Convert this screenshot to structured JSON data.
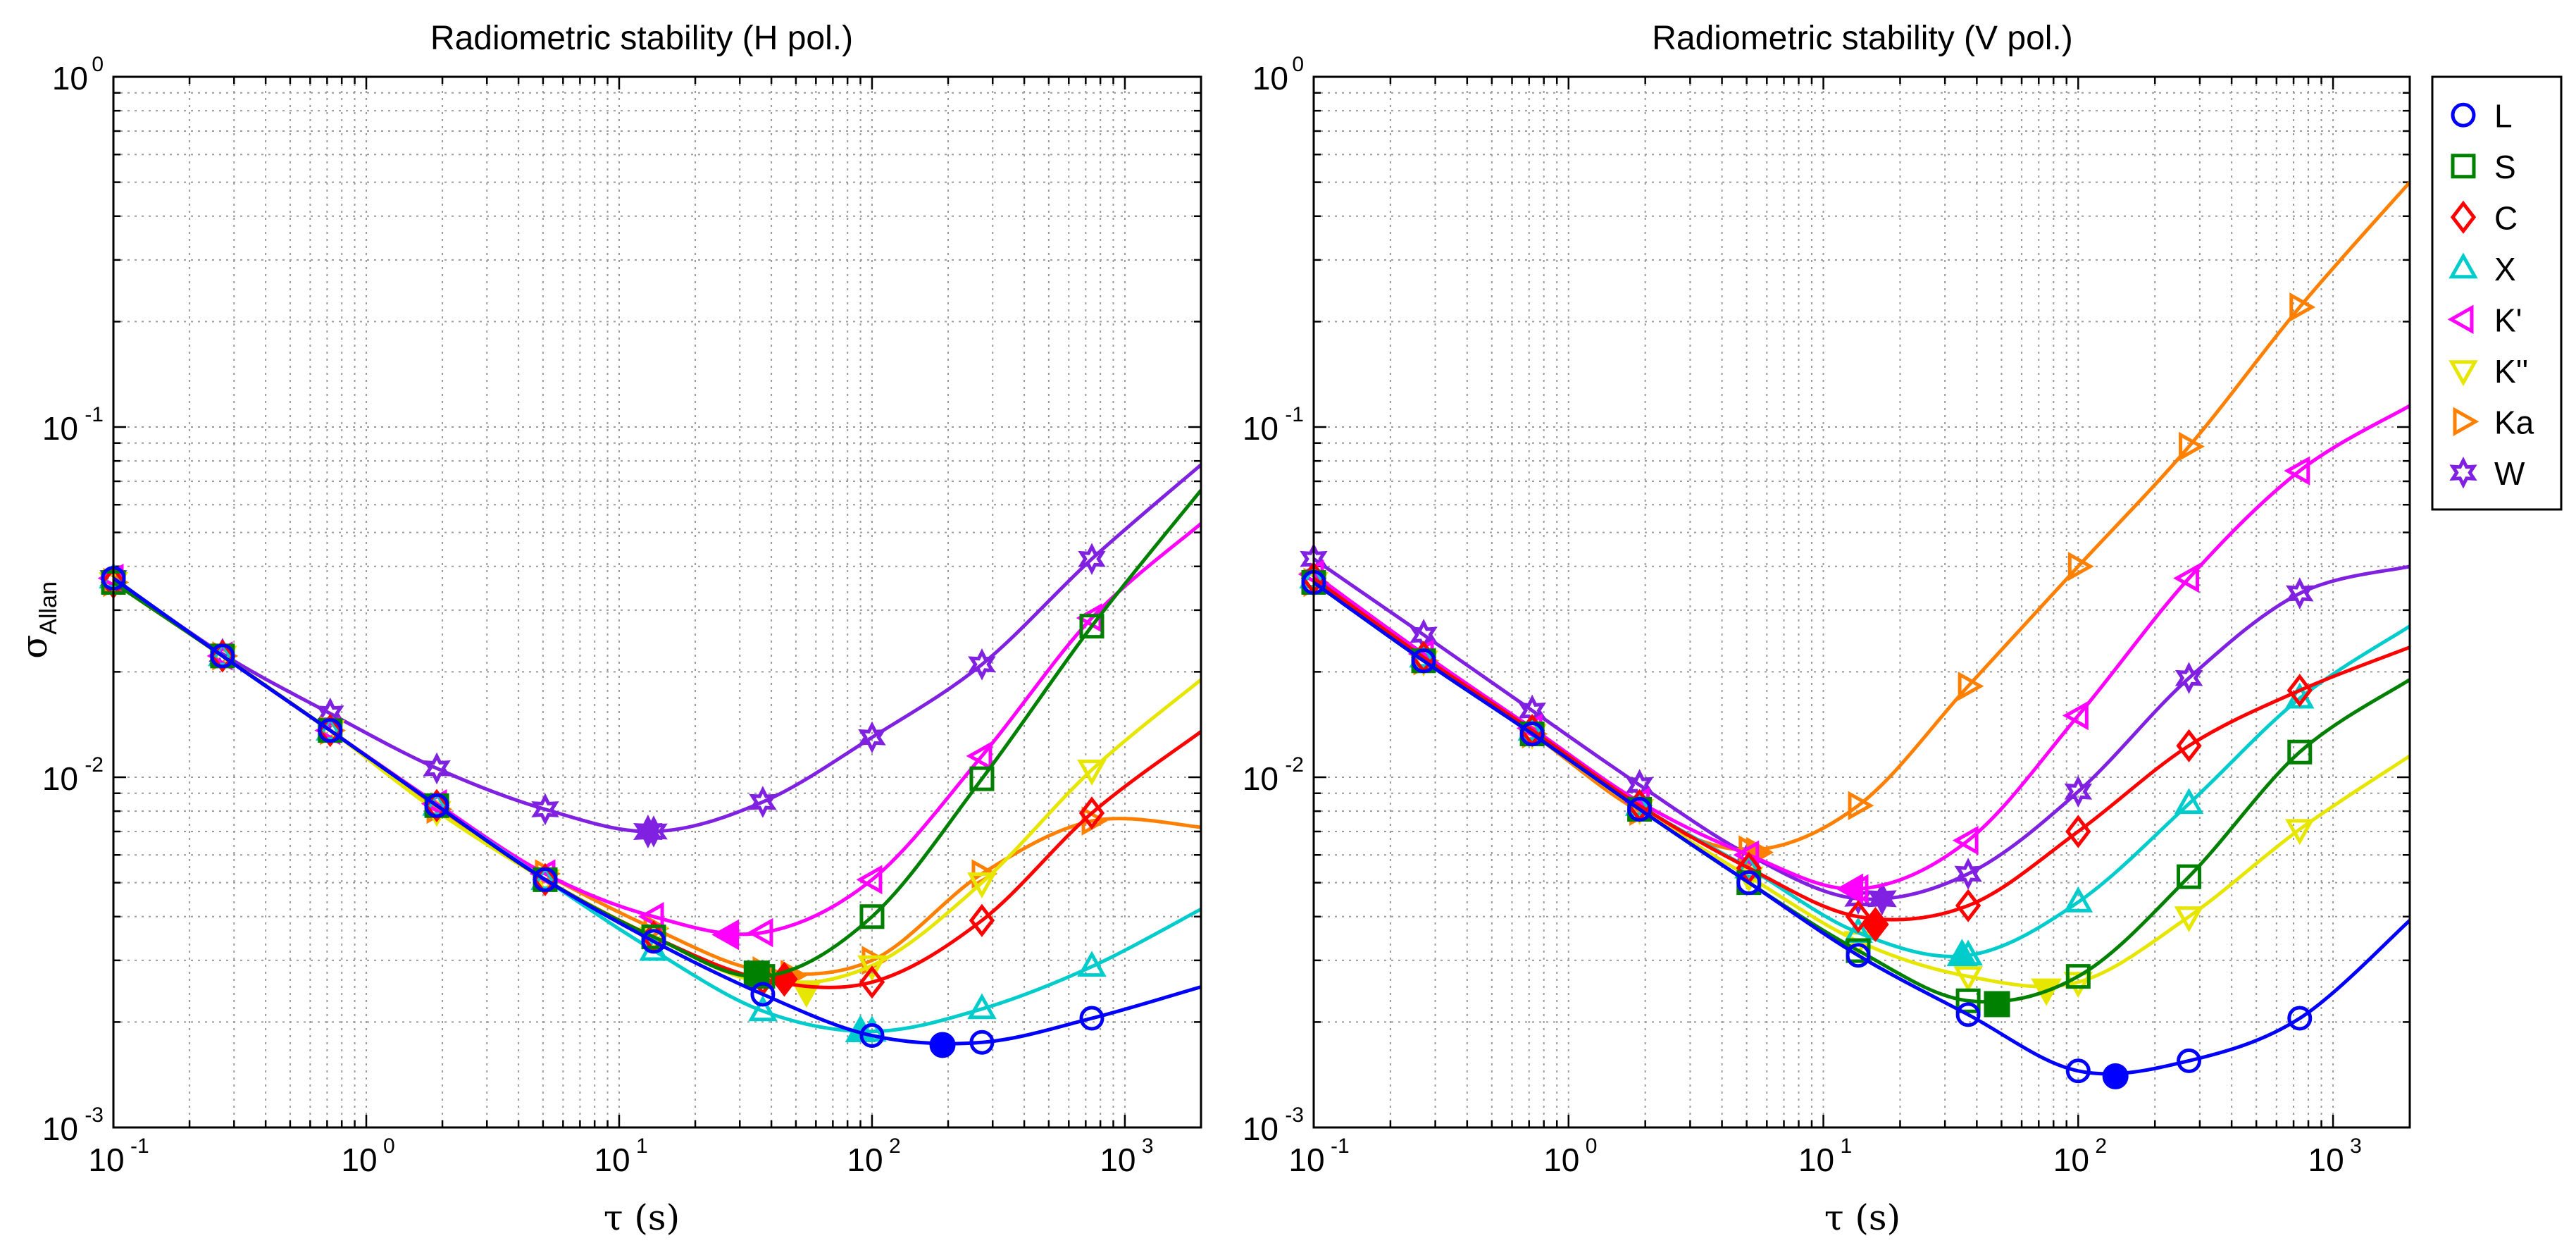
{
  "chart_data": [
    {
      "type": "line",
      "title": "Radiometric stability (H pol.)",
      "xlabel": "τ (s)",
      "ylabel_main": "σ",
      "ylabel_sub": "Allan",
      "xscale": "log",
      "yscale": "log",
      "xlim": [
        0.1,
        2000
      ],
      "ylim": [
        0.001,
        1
      ],
      "grid": true,
      "legend_position": "",
      "x_tick_labels": [
        {
          "base": "10",
          "exp": "-1",
          "value": 0.1
        },
        {
          "base": "10",
          "exp": "0",
          "value": 1
        },
        {
          "base": "10",
          "exp": "1",
          "value": 10
        },
        {
          "base": "10",
          "exp": "2",
          "value": 100
        },
        {
          "base": "10",
          "exp": "3",
          "value": 1000
        }
      ],
      "y_tick_labels": [
        {
          "base": "10",
          "exp": "-3",
          "value": 0.001
        },
        {
          "base": "10",
          "exp": "-2",
          "value": 0.01
        },
        {
          "base": "10",
          "exp": "-1",
          "value": 0.1
        },
        {
          "base": "10",
          "exp": "0",
          "value": 1
        }
      ],
      "series": [
        {
          "name": "L",
          "color": "#0000ff",
          "marker": "circle",
          "x": [
            0.1,
            0.27,
            0.72,
            1.9,
            5.1,
            13.7,
            37,
            100,
            272,
            740,
            2000
          ],
          "y": [
            0.037,
            0.0222,
            0.0136,
            0.0083,
            0.0051,
            0.0034,
            0.0024,
            0.00183,
            0.00175,
            0.00205,
            0.00252
          ],
          "minimum": {
            "x": 190,
            "y": 0.00172
          }
        },
        {
          "name": "S",
          "color": "#008000",
          "marker": "square",
          "x": [
            0.1,
            0.27,
            0.72,
            1.9,
            5.1,
            13.7,
            37,
            100,
            272,
            740,
            2000
          ],
          "y": [
            0.036,
            0.0222,
            0.0136,
            0.0083,
            0.0051,
            0.0035,
            0.0027,
            0.004,
            0.0099,
            0.027,
            0.066
          ],
          "minimum": {
            "x": 35,
            "y": 0.00275
          }
        },
        {
          "name": "C",
          "color": "#ff0000",
          "marker": "diamond",
          "x": [
            0.1,
            0.27,
            0.72,
            1.9,
            5.1,
            13.7,
            37,
            100,
            272,
            740,
            2000
          ],
          "y": [
            0.036,
            0.0222,
            0.0136,
            0.0083,
            0.0051,
            0.0035,
            0.00265,
            0.0026,
            0.0039,
            0.0079,
            0.0135
          ],
          "minimum": {
            "x": 45,
            "y": 0.00265
          }
        },
        {
          "name": "X",
          "color": "#00cccc",
          "marker": "triangle-up",
          "x": [
            0.1,
            0.27,
            0.72,
            1.9,
            5.1,
            13.7,
            37,
            100,
            272,
            740,
            2000
          ],
          "y": [
            0.037,
            0.0222,
            0.0136,
            0.0083,
            0.0051,
            0.0032,
            0.00215,
            0.00188,
            0.00218,
            0.00288,
            0.0042
          ],
          "minimum": {
            "x": 90,
            "y": 0.00188
          }
        },
        {
          "name": "K'",
          "color": "#ff00ff",
          "marker": "triangle-left",
          "x": [
            0.1,
            0.27,
            0.72,
            1.9,
            5.1,
            13.7,
            37,
            100,
            272,
            740,
            2000
          ],
          "y": [
            0.037,
            0.0222,
            0.0136,
            0.0084,
            0.0053,
            0.004,
            0.0036,
            0.0051,
            0.0115,
            0.0285,
            0.053
          ],
          "minimum": {
            "x": 27,
            "y": 0.00355
          }
        },
        {
          "name": "K''",
          "color": "#e6e600",
          "marker": "triangle-down",
          "x": [
            0.1,
            0.27,
            0.72,
            1.9,
            5.1,
            13.7,
            37,
            100,
            272,
            740,
            2000
          ],
          "y": [
            0.036,
            0.0222,
            0.0136,
            0.008,
            0.0051,
            0.0035,
            0.0026,
            0.0029,
            0.005,
            0.0105,
            0.019
          ],
          "minimum": {
            "x": 55,
            "y": 0.00245
          }
        },
        {
          "name": "Ka",
          "color": "#ff8000",
          "marker": "triangle-right",
          "x": [
            0.1,
            0.27,
            0.72,
            1.9,
            5.1,
            13.7,
            37,
            100,
            272,
            740,
            2000
          ],
          "y": [
            0.036,
            0.0222,
            0.0136,
            0.0081,
            0.0053,
            0.0037,
            0.0028,
            0.003,
            0.0053,
            0.0075,
            0.0072
          ],
          "minimum": {
            "x": 48,
            "y": 0.00272
          }
        },
        {
          "name": "W",
          "color": "#8020e0",
          "marker": "star",
          "x": [
            0.1,
            0.27,
            0.72,
            1.9,
            5.1,
            13.7,
            37,
            100,
            272,
            740,
            2000
          ],
          "y": [
            0.037,
            0.0225,
            0.0152,
            0.0106,
            0.0081,
            0.007,
            0.0085,
            0.013,
            0.021,
            0.042,
            0.078
          ],
          "minimum": {
            "x": 13,
            "y": 0.007
          }
        }
      ]
    },
    {
      "type": "line",
      "title": "Radiometric stability (V pol.)",
      "xlabel": "τ (s)",
      "ylabel_main": "",
      "ylabel_sub": "",
      "xscale": "log",
      "yscale": "log",
      "xlim": [
        0.1,
        2000
      ],
      "ylim": [
        0.001,
        1
      ],
      "grid": true,
      "legend_position": "outside-right",
      "x_tick_labels": [
        {
          "base": "10",
          "exp": "-1",
          "value": 0.1
        },
        {
          "base": "10",
          "exp": "0",
          "value": 1
        },
        {
          "base": "10",
          "exp": "1",
          "value": 10
        },
        {
          "base": "10",
          "exp": "2",
          "value": 100
        },
        {
          "base": "10",
          "exp": "3",
          "value": 1000
        }
      ],
      "y_tick_labels": [
        {
          "base": "10",
          "exp": "-3",
          "value": 0.001
        },
        {
          "base": "10",
          "exp": "-2",
          "value": 0.01
        },
        {
          "base": "10",
          "exp": "-1",
          "value": 0.1
        },
        {
          "base": "10",
          "exp": "0",
          "value": 1
        }
      ],
      "series": [
        {
          "name": "L",
          "color": "#0000ff",
          "marker": "circle",
          "x": [
            0.1,
            0.27,
            0.72,
            1.9,
            5.1,
            13.7,
            37,
            100,
            272,
            740,
            2000
          ],
          "y": [
            0.036,
            0.0215,
            0.0133,
            0.0081,
            0.005,
            0.0031,
            0.0021,
            0.00145,
            0.00155,
            0.00205,
            0.0039
          ],
          "minimum": {
            "x": 140,
            "y": 0.0014
          }
        },
        {
          "name": "S",
          "color": "#008000",
          "marker": "square",
          "x": [
            0.1,
            0.27,
            0.72,
            1.9,
            5.1,
            13.7,
            37,
            100,
            272,
            740,
            2000
          ],
          "y": [
            0.036,
            0.0215,
            0.0133,
            0.0081,
            0.005,
            0.0032,
            0.0023,
            0.0027,
            0.0052,
            0.0118,
            0.019
          ],
          "minimum": {
            "x": 48,
            "y": 0.00225
          }
        },
        {
          "name": "C",
          "color": "#ff0000",
          "marker": "diamond",
          "x": [
            0.1,
            0.27,
            0.72,
            1.9,
            5.1,
            13.7,
            37,
            100,
            272,
            740,
            2000
          ],
          "y": [
            0.037,
            0.022,
            0.0136,
            0.0083,
            0.0055,
            0.004,
            0.0043,
            0.007,
            0.0123,
            0.0177,
            0.0235
          ],
          "minimum": {
            "x": 16,
            "y": 0.0038
          }
        },
        {
          "name": "X",
          "color": "#00cccc",
          "marker": "triangle-up",
          "x": [
            0.1,
            0.27,
            0.72,
            1.9,
            5.1,
            13.7,
            37,
            100,
            272,
            740,
            2000
          ],
          "y": [
            0.037,
            0.022,
            0.0136,
            0.0083,
            0.0055,
            0.0036,
            0.0031,
            0.0044,
            0.0084,
            0.0168,
            0.027
          ],
          "minimum": {
            "x": 35,
            "y": 0.0031
          }
        },
        {
          "name": "K'",
          "color": "#ff00ff",
          "marker": "triangle-left",
          "x": [
            0.1,
            0.27,
            0.72,
            1.9,
            5.1,
            13.7,
            37,
            100,
            272,
            740,
            2000
          ],
          "y": [
            0.038,
            0.0225,
            0.0138,
            0.0085,
            0.006,
            0.0048,
            0.0066,
            0.015,
            0.037,
            0.075,
            0.115
          ],
          "minimum": {
            "x": 13,
            "y": 0.0048
          }
        },
        {
          "name": "K''",
          "color": "#e6e600",
          "marker": "triangle-down",
          "x": [
            0.1,
            0.27,
            0.72,
            1.9,
            5.1,
            13.7,
            37,
            100,
            272,
            740,
            2000
          ],
          "y": [
            0.036,
            0.0215,
            0.0133,
            0.0081,
            0.0052,
            0.0034,
            0.0027,
            0.0026,
            0.004,
            0.0071,
            0.0115
          ],
          "minimum": {
            "x": 75,
            "y": 0.00248
          }
        },
        {
          "name": "Ka",
          "color": "#ff8000",
          "marker": "triangle-right",
          "x": [
            0.1,
            0.27,
            0.72,
            1.9,
            5.1,
            13.7,
            37,
            100,
            272,
            740,
            2000
          ],
          "y": [
            0.036,
            0.0215,
            0.0133,
            0.008,
            0.0062,
            0.0083,
            0.0182,
            0.04,
            0.088,
            0.22,
            0.5
          ],
          "minimum": {
            "x": 5.5,
            "y": 0.0061
          }
        },
        {
          "name": "W",
          "color": "#8020e0",
          "marker": "star",
          "x": [
            0.1,
            0.27,
            0.72,
            1.9,
            5.1,
            13.7,
            37,
            100,
            272,
            740,
            2000
          ],
          "y": [
            0.042,
            0.0255,
            0.0155,
            0.0095,
            0.006,
            0.0045,
            0.0053,
            0.0091,
            0.0192,
            0.0335,
            0.04
          ],
          "minimum": {
            "x": 17,
            "y": 0.0045
          }
        }
      ]
    }
  ],
  "legend": {
    "items": [
      {
        "label": "L",
        "color": "#0000ff",
        "marker": "circle"
      },
      {
        "label": "S",
        "color": "#008000",
        "marker": "square"
      },
      {
        "label": "C",
        "color": "#ff0000",
        "marker": "diamond"
      },
      {
        "label": "X",
        "color": "#00cccc",
        "marker": "triangle-up"
      },
      {
        "label": "K'",
        "color": "#ff00ff",
        "marker": "triangle-left"
      },
      {
        "label": "K''",
        "color": "#e6e600",
        "marker": "triangle-down"
      },
      {
        "label": "Ka",
        "color": "#ff8000",
        "marker": "triangle-right"
      },
      {
        "label": "W",
        "color": "#8020e0",
        "marker": "star"
      }
    ]
  }
}
